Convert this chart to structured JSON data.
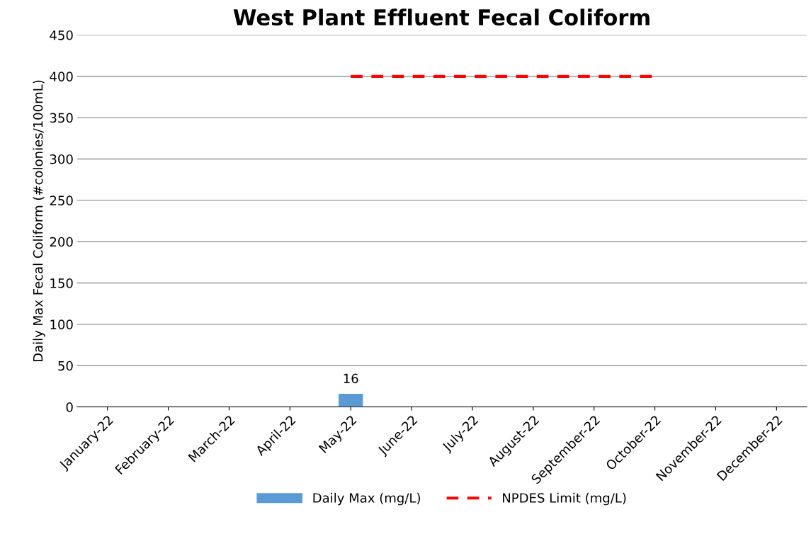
{
  "chart_data": {
    "type": "bar",
    "title": "West Plant Effluent Fecal Coliform",
    "ylabel": "Daily Max Fecal Coliform (#colonies/100mL)",
    "categories": [
      "January-22",
      "February-22",
      "March-22",
      "April-22",
      "May-22",
      "June-22",
      "July-22",
      "August-22",
      "September-22",
      "October-22",
      "November-22",
      "December-22"
    ],
    "series": [
      {
        "name": "Daily Max (mg/L)",
        "color": "#5b9bd5",
        "values": [
          null,
          null,
          null,
          null,
          16,
          null,
          null,
          null,
          null,
          null,
          null,
          null
        ],
        "value_labels": [
          null,
          null,
          null,
          null,
          "16",
          null,
          null,
          null,
          null,
          null,
          null,
          null
        ]
      },
      {
        "name": "NPDES Limit (mg/L)",
        "type": "line",
        "color": "#ff0000",
        "line_style": "dashed",
        "marker": "none",
        "values": [
          null,
          null,
          null,
          null,
          400,
          400,
          400,
          400,
          400,
          400,
          null,
          null
        ]
      }
    ],
    "ylim": [
      0,
      450
    ],
    "yticks": [
      0,
      50,
      100,
      150,
      200,
      250,
      300,
      350,
      400,
      450
    ],
    "grid": "y",
    "legend": "bottom"
  }
}
